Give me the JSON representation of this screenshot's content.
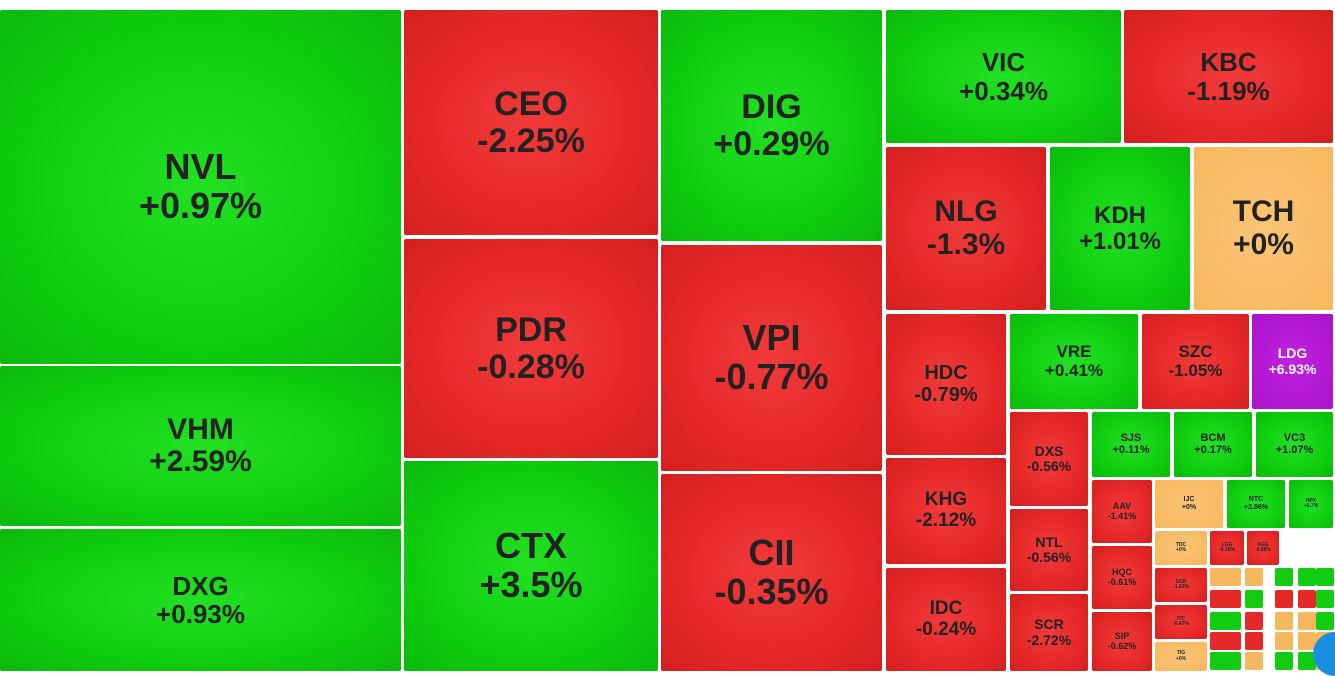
{
  "colors": {
    "up": "#11cc11",
    "down": "#e52828",
    "flat": "#f6b85e",
    "ceiling": "#b515d5"
  },
  "tiles": [
    {
      "sym": "NVL",
      "chg": "+0.97%",
      "trend": "up"
    },
    {
      "sym": "VHM",
      "chg": "+2.59%",
      "trend": "up"
    },
    {
      "sym": "DXG",
      "chg": "+0.93%",
      "trend": "up"
    },
    {
      "sym": "CEO",
      "chg": "-2.25%",
      "trend": "down"
    },
    {
      "sym": "PDR",
      "chg": "-0.28%",
      "trend": "down"
    },
    {
      "sym": "CTX",
      "chg": "+3.5%",
      "trend": "up"
    },
    {
      "sym": "DIG",
      "chg": "+0.29%",
      "trend": "up"
    },
    {
      "sym": "VPI",
      "chg": "-0.77%",
      "trend": "down"
    },
    {
      "sym": "CII",
      "chg": "-0.35%",
      "trend": "down"
    },
    {
      "sym": "VIC",
      "chg": "+0.34%",
      "trend": "up"
    },
    {
      "sym": "KBC",
      "chg": "-1.19%",
      "trend": "down"
    },
    {
      "sym": "NLG",
      "chg": "-1.3%",
      "trend": "down"
    },
    {
      "sym": "KDH",
      "chg": "+1.01%",
      "trend": "up"
    },
    {
      "sym": "TCH",
      "chg": "+0%",
      "trend": "flat"
    },
    {
      "sym": "HDC",
      "chg": "-0.79%",
      "trend": "down"
    },
    {
      "sym": "VRE",
      "chg": "+0.41%",
      "trend": "up"
    },
    {
      "sym": "SZC",
      "chg": "-1.05%",
      "trend": "down"
    },
    {
      "sym": "LDG",
      "chg": "+6.93%",
      "trend": "ceil"
    },
    {
      "sym": "KHG",
      "chg": "-2.12%",
      "trend": "down"
    },
    {
      "sym": "IDC",
      "chg": "-0.24%",
      "trend": "down"
    },
    {
      "sym": "DXS",
      "chg": "-0.56%",
      "trend": "down"
    },
    {
      "sym": "NTL",
      "chg": "-0.56%",
      "trend": "down"
    },
    {
      "sym": "SCR",
      "chg": "-2.72%",
      "trend": "down"
    },
    {
      "sym": "SJS",
      "chg": "+0.11%",
      "trend": "up"
    },
    {
      "sym": "BCM",
      "chg": "+0.17%",
      "trend": "up"
    },
    {
      "sym": "VC3",
      "chg": "+1.07%",
      "trend": "up"
    },
    {
      "sym": "AAV",
      "chg": "-1.41%",
      "trend": "down"
    },
    {
      "sym": "IJC",
      "chg": "+0%",
      "trend": "flat"
    },
    {
      "sym": "NTC",
      "chg": "+2.86%",
      "trend": "up"
    },
    {
      "sym": "HPX",
      "chg": "+0.7%",
      "trend": "up"
    },
    {
      "sym": "HQC",
      "chg": "-0.61%",
      "trend": "down"
    },
    {
      "sym": "SIP",
      "chg": "-0.62%",
      "trend": "down"
    },
    {
      "sym": "TDC",
      "chg": "+0%",
      "trend": "flat"
    },
    {
      "sym": "LGG",
      "chg": "-0.36%",
      "trend": "down"
    },
    {
      "sym": "AGG",
      "chg": "-0.88%",
      "trend": "down"
    },
    {
      "sym": "SGR",
      "chg": "-1.02%",
      "trend": "down"
    },
    {
      "sym": "ITC",
      "chg": "-0.47%",
      "trend": "down"
    },
    {
      "sym": "TIG",
      "chg": "+0%",
      "trend": "flat"
    }
  ],
  "mini_tiles": [
    "flat",
    "down",
    "up",
    "down",
    "up",
    "flat",
    "up",
    "down",
    "down",
    "flat",
    "up",
    "down",
    "flat",
    "flat",
    "up",
    "up",
    "down",
    "flat",
    "flat",
    "up",
    "up",
    "up",
    "up",
    "flat",
    "flat",
    "flat",
    "down",
    "flat",
    "up",
    "up",
    "up",
    "up"
  ]
}
